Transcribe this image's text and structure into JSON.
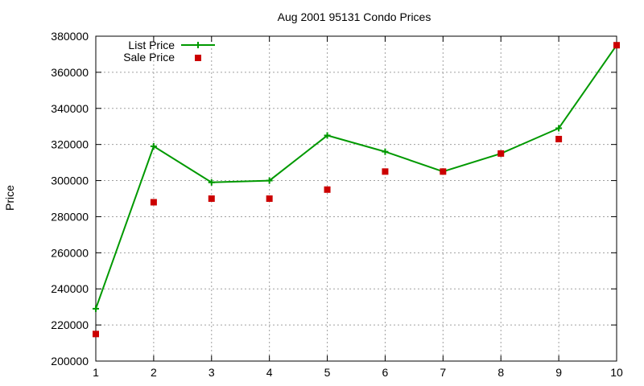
{
  "chart_data": {
    "type": "line",
    "title": "Aug 2001 95131 Condo Prices",
    "xlabel": "",
    "ylabel": "Price",
    "x": [
      1,
      2,
      3,
      4,
      5,
      6,
      7,
      8,
      9,
      10
    ],
    "xlim": [
      1,
      10
    ],
    "ylim": [
      200000,
      380000
    ],
    "x_ticks": [
      "1",
      "2",
      "3",
      "4",
      "5",
      "6",
      "7",
      "8",
      "9",
      "10"
    ],
    "y_ticks": [
      "200000",
      "220000",
      "240000",
      "260000",
      "280000",
      "300000",
      "320000",
      "340000",
      "360000",
      "380000"
    ],
    "grid": true,
    "legend_position": "top-left",
    "series": [
      {
        "name": "List Price",
        "style": "line-with-plus-markers",
        "color": "#009900",
        "values": [
          229000,
          319000,
          299000,
          300000,
          325000,
          316000,
          305000,
          315000,
          329000,
          375000
        ]
      },
      {
        "name": "Sale Price",
        "style": "square-markers",
        "color": "#cc0000",
        "values": [
          215000,
          288000,
          290000,
          290000,
          295000,
          305000,
          305000,
          315000,
          323000,
          375000
        ]
      }
    ]
  }
}
